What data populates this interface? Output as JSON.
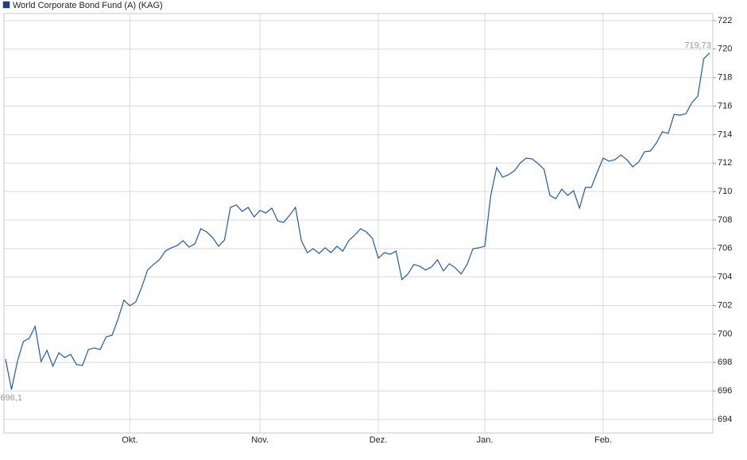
{
  "chart_data": {
    "type": "line",
    "categories": [
      null,
      null,
      null,
      null,
      null,
      null,
      null,
      null,
      null,
      null,
      null,
      null,
      null,
      null,
      null,
      null,
      null,
      null,
      null,
      null,
      null,
      "Okt.",
      null,
      null,
      null,
      null,
      null,
      null,
      null,
      null,
      null,
      null,
      null,
      null,
      null,
      null,
      null,
      null,
      null,
      null,
      null,
      null,
      null,
      "Nov.",
      null,
      null,
      null,
      null,
      null,
      null,
      null,
      null,
      null,
      null,
      null,
      null,
      null,
      null,
      null,
      null,
      null,
      null,
      null,
      "Dez.",
      null,
      null,
      null,
      null,
      null,
      null,
      null,
      null,
      null,
      null,
      null,
      null,
      null,
      null,
      null,
      null,
      null,
      "Jan.",
      null,
      null,
      null,
      null,
      null,
      null,
      null,
      null,
      null,
      null,
      null,
      null,
      null,
      null,
      null,
      null,
      null,
      null,
      null,
      "Feb.",
      null,
      null,
      null,
      null,
      null,
      null,
      null,
      null,
      null,
      null,
      null,
      null,
      null,
      null,
      null,
      null,
      null,
      null
    ],
    "series": [
      {
        "name": "World Corporate Bond Fund (A) (KAG)",
        "color": "#1f5aa6",
        "legend_color": "#1f3f8f",
        "values": [
          698.24,
          696.1,
          698.07,
          699.47,
          699.69,
          700.53,
          698.07,
          698.85,
          697.74,
          698.68,
          698.35,
          698.57,
          697.85,
          697.79,
          698.91,
          699.02,
          698.91,
          699.8,
          699.91,
          701.03,
          702.37,
          701.98,
          702.25,
          703.26,
          704.49,
          704.88,
          705.21,
          705.82,
          706.05,
          706.21,
          706.55,
          706.1,
          706.33,
          707.39,
          707.16,
          706.77,
          706.16,
          706.6,
          708.89,
          709.06,
          708.61,
          708.89,
          708.22,
          708.67,
          708.5,
          708.84,
          707.94,
          707.83,
          708.33,
          708.89,
          706.55,
          705.71,
          705.99,
          705.66,
          706.05,
          705.71,
          706.16,
          705.82,
          706.55,
          706.94,
          707.39,
          707.16,
          706.72,
          705.32,
          705.71,
          705.6,
          705.82,
          703.82,
          704.21,
          704.88,
          704.76,
          704.49,
          704.71,
          705.21,
          704.43,
          704.93,
          704.65,
          704.21,
          704.88,
          705.99,
          706.05,
          706.16,
          709.73,
          711.68,
          711.01,
          711.18,
          711.46,
          712.01,
          712.35,
          712.29,
          711.96,
          711.57,
          709.73,
          709.5,
          710.17,
          709.73,
          710.06,
          708.84,
          710.29,
          710.29,
          711.35,
          712.35,
          712.13,
          712.24,
          712.57,
          712.24,
          711.74,
          712.07,
          712.8,
          712.85,
          713.41,
          714.19,
          714.08,
          715.42,
          715.36,
          715.47,
          716.25,
          716.7,
          719.32,
          719.73
        ],
        "value_labels": [
          null,
          "696,1",
          null,
          null,
          null,
          null,
          null,
          null,
          null,
          null,
          null,
          null,
          null,
          null,
          null,
          null,
          null,
          null,
          null,
          null,
          null,
          null,
          null,
          null,
          null,
          null,
          null,
          null,
          null,
          null,
          null,
          null,
          null,
          null,
          null,
          null,
          null,
          null,
          null,
          null,
          null,
          null,
          null,
          null,
          null,
          null,
          null,
          null,
          null,
          null,
          null,
          null,
          null,
          null,
          null,
          null,
          null,
          null,
          null,
          null,
          null,
          null,
          null,
          null,
          null,
          null,
          null,
          null,
          null,
          null,
          null,
          null,
          null,
          null,
          null,
          null,
          null,
          null,
          null,
          null,
          null,
          null,
          null,
          null,
          null,
          null,
          null,
          null,
          null,
          null,
          null,
          null,
          null,
          null,
          null,
          null,
          null,
          null,
          null,
          null,
          null,
          null,
          null,
          null,
          null,
          null,
          null,
          null,
          null,
          null,
          null,
          null,
          null,
          null,
          null,
          null,
          null,
          null,
          null,
          "719,73"
        ]
      }
    ],
    "ylim": [
      693.05,
      722.5
    ],
    "yticks": [
      694,
      696,
      698,
      700,
      702,
      704,
      706,
      708,
      710,
      712,
      714,
      716,
      718,
      720,
      722
    ],
    "grid": true
  }
}
